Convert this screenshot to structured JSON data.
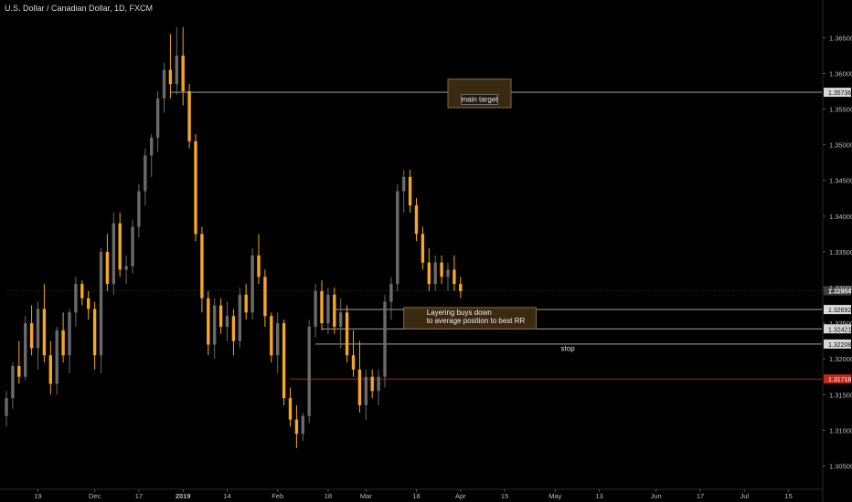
{
  "header": {
    "symbol_title": "U.S. Dollar / Canadian Dollar, 1D, FXCM"
  },
  "colors": {
    "background": "#000000",
    "up_candle": "#6a6a6a",
    "down_candle": "#f5a623",
    "axis_text": "#bdbdbd",
    "level_line": "#b8b8b8",
    "stop_line": "#c0281e",
    "zone_fill": "#3a2a12",
    "zone_border": "#8a6a3a"
  },
  "chart_data": {
    "type": "candlestick",
    "yaxis": {
      "ticks": [
        1.305,
        1.31,
        1.315,
        1.32,
        1.325,
        1.33,
        1.335,
        1.34,
        1.345,
        1.35,
        1.355,
        1.36,
        1.365
      ],
      "tick_labels": [
        "1.30500",
        "1.31000",
        "1.31500",
        "1.32000",
        "1.32500",
        "1.33000",
        "1.33500",
        "1.34000",
        "1.34500",
        "1.35000",
        "1.35500",
        "1.36000",
        "1.36500"
      ],
      "range": [
        1.3025,
        1.3685
      ]
    },
    "xaxis": {
      "labels": [
        "19",
        "Dec",
        "17",
        "2019",
        "14",
        "Feb",
        "18",
        "Mar",
        "18",
        "Apr",
        "15",
        "May",
        "13",
        "Jun",
        "17",
        "Jul",
        "15"
      ],
      "label_bar_index": [
        5,
        14,
        21,
        28,
        35,
        43,
        51,
        57,
        65,
        72,
        79,
        87,
        94,
        103,
        110,
        117,
        124
      ],
      "bold_labels": [
        "2019"
      ]
    },
    "candles": [
      [
        1.312,
        1.3155,
        1.3105,
        1.3145
      ],
      [
        1.3145,
        1.3195,
        1.313,
        1.319
      ],
      [
        1.319,
        1.3225,
        1.3165,
        1.3175
      ],
      [
        1.3175,
        1.326,
        1.317,
        1.325
      ],
      [
        1.325,
        1.3275,
        1.3205,
        1.3215
      ],
      [
        1.3215,
        1.328,
        1.3185,
        1.327
      ],
      [
        1.327,
        1.3305,
        1.3195,
        1.3205
      ],
      [
        1.3205,
        1.3225,
        1.315,
        1.3165
      ],
      [
        1.3165,
        1.3245,
        1.315,
        1.324
      ],
      [
        1.324,
        1.3265,
        1.3195,
        1.3205
      ],
      [
        1.3205,
        1.327,
        1.318,
        1.3265
      ],
      [
        1.3265,
        1.3315,
        1.3245,
        1.3305
      ],
      [
        1.3305,
        1.331,
        1.3275,
        1.3285
      ],
      [
        1.3285,
        1.3295,
        1.3255,
        1.327
      ],
      [
        1.327,
        1.328,
        1.3185,
        1.3205
      ],
      [
        1.3205,
        1.3355,
        1.318,
        1.335
      ],
      [
        1.335,
        1.3375,
        1.3295,
        1.3305
      ],
      [
        1.3305,
        1.3405,
        1.329,
        1.339
      ],
      [
        1.339,
        1.3405,
        1.3315,
        1.3325
      ],
      [
        1.3325,
        1.3345,
        1.3305,
        1.333
      ],
      [
        1.333,
        1.3395,
        1.332,
        1.3385
      ],
      [
        1.3385,
        1.3445,
        1.337,
        1.3435
      ],
      [
        1.3435,
        1.3495,
        1.3415,
        1.3485
      ],
      [
        1.3485,
        1.3515,
        1.3455,
        1.351
      ],
      [
        1.351,
        1.3575,
        1.349,
        1.3565
      ],
      [
        1.3565,
        1.3615,
        1.3545,
        1.3605
      ],
      [
        1.3605,
        1.3655,
        1.3565,
        1.3585
      ],
      [
        1.3585,
        1.3665,
        1.357,
        1.3625
      ],
      [
        1.3625,
        1.3665,
        1.3555,
        1.3575
      ],
      [
        1.3575,
        1.3585,
        1.3495,
        1.3505
      ],
      [
        1.3505,
        1.3515,
        1.3365,
        1.3375
      ],
      [
        1.3375,
        1.3385,
        1.3265,
        1.3285
      ],
      [
        1.3285,
        1.3295,
        1.3205,
        1.322
      ],
      [
        1.322,
        1.3285,
        1.32,
        1.3275
      ],
      [
        1.3275,
        1.3285,
        1.3235,
        1.3245
      ],
      [
        1.3245,
        1.328,
        1.3225,
        1.326
      ],
      [
        1.326,
        1.327,
        1.3205,
        1.3225
      ],
      [
        1.3225,
        1.33,
        1.3215,
        1.329
      ],
      [
        1.329,
        1.3305,
        1.3255,
        1.3265
      ],
      [
        1.3265,
        1.3355,
        1.3255,
        1.3345
      ],
      [
        1.3345,
        1.3375,
        1.3305,
        1.3315
      ],
      [
        1.3315,
        1.3325,
        1.3245,
        1.326
      ],
      [
        1.326,
        1.3265,
        1.3195,
        1.3205
      ],
      [
        1.3205,
        1.3265,
        1.318,
        1.325
      ],
      [
        1.325,
        1.3255,
        1.3135,
        1.3145
      ],
      [
        1.3145,
        1.316,
        1.3105,
        1.3115
      ],
      [
        1.3115,
        1.3135,
        1.3075,
        1.3095
      ],
      [
        1.3095,
        1.3125,
        1.3085,
        1.312
      ],
      [
        1.312,
        1.3255,
        1.311,
        1.3245
      ],
      [
        1.3245,
        1.3305,
        1.323,
        1.3295
      ],
      [
        1.3295,
        1.331,
        1.324,
        1.325
      ],
      [
        1.325,
        1.33,
        1.3235,
        1.329
      ],
      [
        1.329,
        1.33,
        1.3235,
        1.3245
      ],
      [
        1.3245,
        1.3285,
        1.3215,
        1.3265
      ],
      [
        1.3265,
        1.3275,
        1.3195,
        1.3205
      ],
      [
        1.3205,
        1.324,
        1.3175,
        1.3185
      ],
      [
        1.3185,
        1.3225,
        1.3125,
        1.3135
      ],
      [
        1.3135,
        1.3185,
        1.3115,
        1.3175
      ],
      [
        1.3175,
        1.3185,
        1.3145,
        1.3155
      ],
      [
        1.3155,
        1.3185,
        1.3135,
        1.3175
      ],
      [
        1.3175,
        1.329,
        1.316,
        1.328
      ],
      [
        1.328,
        1.3315,
        1.3255,
        1.3305
      ],
      [
        1.3305,
        1.3445,
        1.3295,
        1.3435
      ],
      [
        1.3435,
        1.3465,
        1.3405,
        1.3455
      ],
      [
        1.3455,
        1.3465,
        1.3405,
        1.3415
      ],
      [
        1.3415,
        1.3425,
        1.3365,
        1.3375
      ],
      [
        1.3375,
        1.3385,
        1.3325,
        1.3335
      ],
      [
        1.3335,
        1.3355,
        1.3295,
        1.3305
      ],
      [
        1.3305,
        1.3345,
        1.3295,
        1.3335
      ],
      [
        1.3335,
        1.3345,
        1.3305,
        1.3315
      ],
      [
        1.3315,
        1.3335,
        1.3295,
        1.3325
      ],
      [
        1.3325,
        1.3345,
        1.3295,
        1.3305
      ],
      [
        1.3305,
        1.3315,
        1.3285,
        1.3295
      ]
    ],
    "last_price": 1.32954,
    "annotations": [
      {
        "kind": "hline",
        "price": 1.35736,
        "label": "1.35736",
        "from_bar": 26,
        "style": "level"
      },
      {
        "kind": "hline",
        "price": 1.32954,
        "label": "1.32954",
        "from_bar": 0,
        "style": "price"
      },
      {
        "kind": "hline",
        "price": 1.32692,
        "label": "1.32692",
        "from_bar": 52,
        "style": "level"
      },
      {
        "kind": "hline",
        "price": 1.32421,
        "label": "1.32421",
        "from_bar": 50,
        "style": "level"
      },
      {
        "kind": "hline",
        "price": 1.32208,
        "label": "1.32208",
        "from_bar": 49,
        "style": "level"
      },
      {
        "kind": "hline",
        "price": 1.31718,
        "label": "1.31718",
        "from_bar": 45,
        "style": "stop"
      }
    ],
    "zones": [
      {
        "text": "main target",
        "from_bar": 70,
        "to_bar": 80,
        "top": 1.3592,
        "bottom": 1.3552
      },
      {
        "text_lines": [
          "Layering buys down",
          "to average position to best RR"
        ],
        "from_bar": 63,
        "to_bar": 84,
        "top": 1.3272,
        "bottom": 1.3242
      }
    ],
    "labels": [
      {
        "text": "stop",
        "bar": 89,
        "price": 1.3215
      }
    ]
  }
}
